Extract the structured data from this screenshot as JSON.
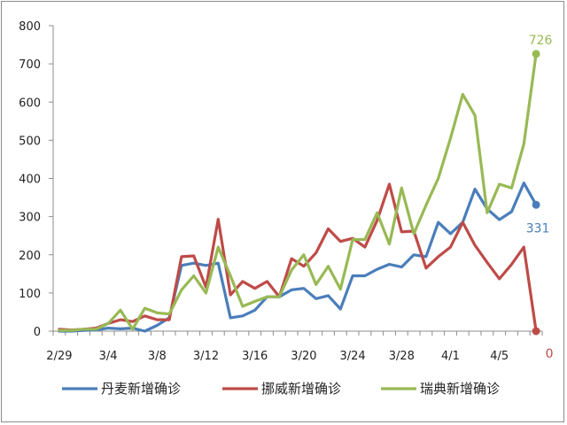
{
  "chart_data": {
    "type": "line",
    "y_ticks": [
      0,
      100,
      200,
      300,
      400,
      500,
      600,
      700,
      800
    ],
    "ylim": [
      0,
      800
    ],
    "x_tick_labels": [
      "2/29",
      "3/4",
      "3/8",
      "3/12",
      "3/16",
      "3/20",
      "3/24",
      "3/28",
      "4/1",
      "4/5"
    ],
    "x_tick_index": [
      0,
      4,
      8,
      12,
      16,
      20,
      24,
      28,
      32,
      36
    ],
    "x_count": 40,
    "grid": false,
    "legend_position": "bottom",
    "series": [
      {
        "name": "丹麦新增确诊",
        "color": "#4a7ebb",
        "values": [
          0,
          0,
          2,
          3,
          8,
          6,
          8,
          0,
          15,
          35,
          172,
          178,
          172,
          178,
          35,
          40,
          55,
          90,
          90,
          108,
          112,
          85,
          93,
          58,
          145,
          145,
          162,
          175,
          168,
          200,
          195,
          285,
          255,
          285,
          372,
          320,
          292,
          313,
          388,
          331
        ],
        "end_label": "331"
      },
      {
        "name": "挪威新增确诊",
        "color": "#be4b48",
        "values": [
          5,
          3,
          5,
          8,
          20,
          30,
          25,
          40,
          30,
          30,
          195,
          197,
          115,
          293,
          95,
          130,
          112,
          130,
          90,
          190,
          170,
          205,
          268,
          235,
          243,
          220,
          290,
          385,
          260,
          262,
          165,
          195,
          220,
          285,
          225,
          180,
          137,
          175,
          220,
          0
        ],
        "end_label": "0"
      },
      {
        "name": "瑞典新增确诊",
        "color": "#98b954",
        "values": [
          2,
          2,
          5,
          5,
          20,
          55,
          5,
          60,
          48,
          45,
          108,
          145,
          100,
          220,
          145,
          65,
          78,
          90,
          90,
          160,
          200,
          122,
          170,
          110,
          240,
          240,
          310,
          228,
          375,
          255,
          330,
          400,
          505,
          620,
          565,
          310,
          385,
          375,
          490,
          726
        ],
        "end_label": "726"
      }
    ]
  }
}
